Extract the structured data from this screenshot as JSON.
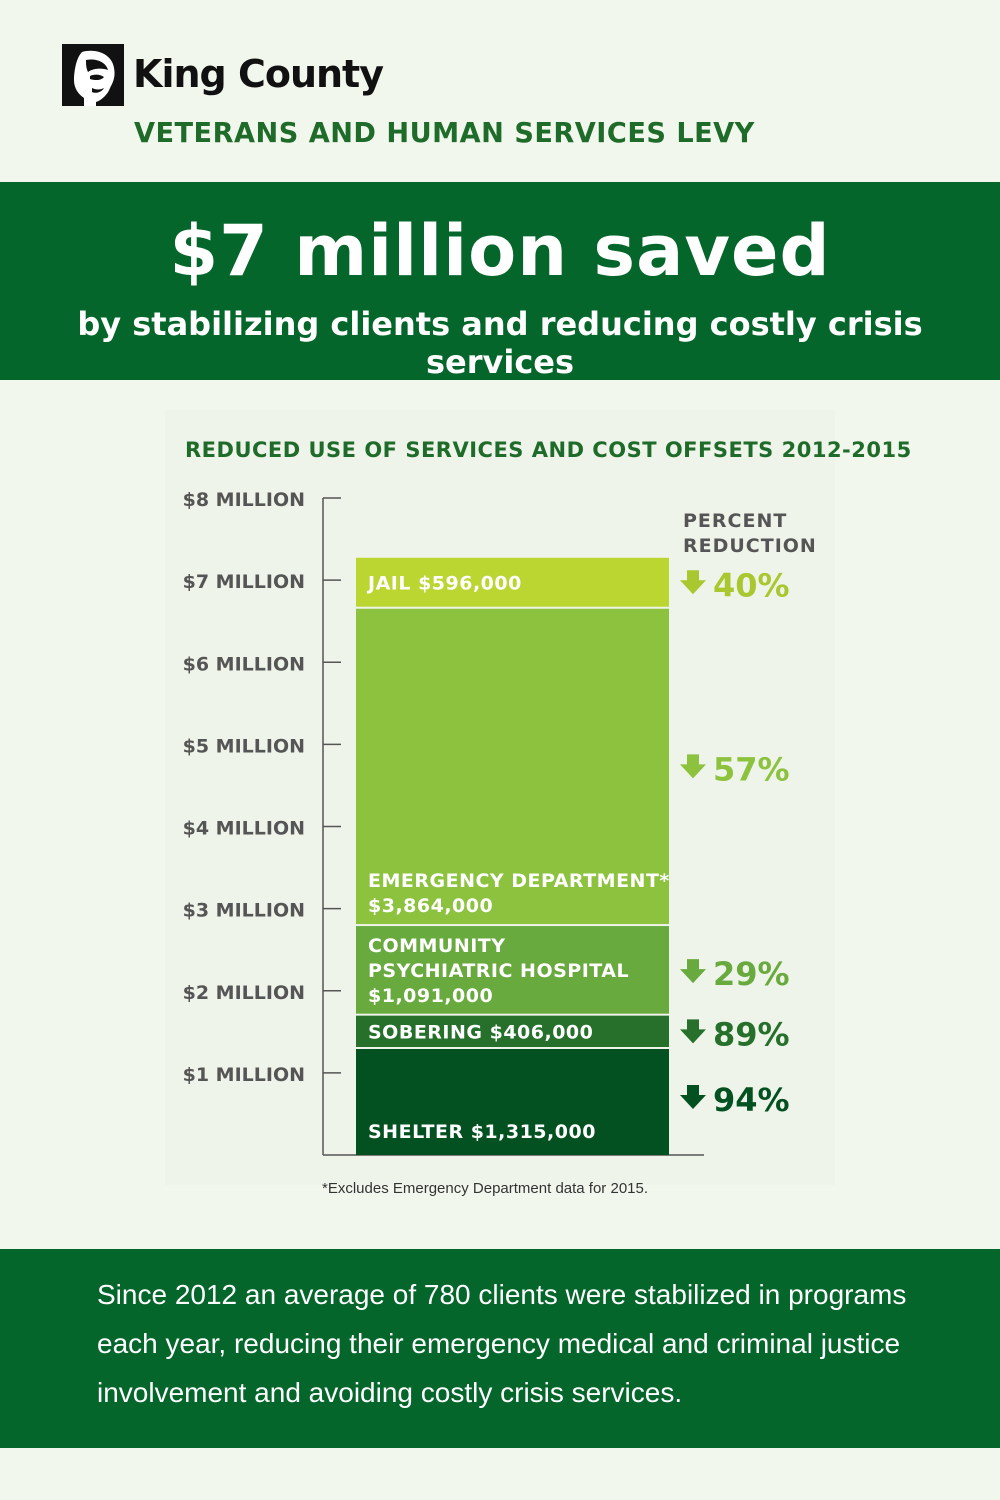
{
  "brand": {
    "name": "King County",
    "program": "VETERANS AND HUMAN SERVICES LEVY",
    "logo_icon": "king-county-logo-icon"
  },
  "banner": {
    "headline": "$7 million saved",
    "subhead": "by stabilizing clients and reducing costly crisis services"
  },
  "colors": {
    "dark_green": "#05662b",
    "title_green": "#1e6b2a",
    "jail": "#bcd631",
    "emergency": "#8dc23f",
    "psychiatric": "#69aa3e",
    "sobering": "#26702c",
    "shelter": "#035020"
  },
  "chart_data": {
    "type": "bar",
    "stacked": true,
    "title": "REDUCED USE OF SERVICES AND COST OFFSETS 2012-2015",
    "y_ticks": [
      "$1 MILLION",
      "$2 MILLION",
      "$3 MILLION",
      "$4 MILLION",
      "$5 MILLION",
      "$6 MILLION",
      "$7 MILLION",
      "$8 MILLION"
    ],
    "ylim": [
      0,
      8000000
    ],
    "reduction_header": [
      "PERCENT",
      "REDUCTION"
    ],
    "segments": [
      {
        "key": "shelter",
        "label_lines": [
          "SHELTER $1,315,000"
        ],
        "value": 1315000,
        "reduction": "94%",
        "color": "#035020",
        "arrow_color": "#035020"
      },
      {
        "key": "sobering",
        "label_lines": [
          "SOBERING $406,000"
        ],
        "value": 406000,
        "reduction": "89%",
        "color": "#26702c",
        "arrow_color": "#26702c"
      },
      {
        "key": "psychiatric",
        "label_lines": [
          "COMMUNITY",
          "PSYCHIATRIC HOSPITAL",
          "$1,091,000"
        ],
        "value": 1091000,
        "reduction": "29%",
        "color": "#69aa3e",
        "arrow_color": "#69aa3e"
      },
      {
        "key": "emergency",
        "label_lines": [
          "EMERGENCY DEPARTMENT*",
          "$3,864,000"
        ],
        "value": 3864000,
        "reduction": "57%",
        "color": "#8dc23f",
        "arrow_color": "#8dc23f"
      },
      {
        "key": "jail",
        "label_lines": [
          "JAIL $596,000"
        ],
        "value": 596000,
        "reduction": "40%",
        "color": "#bcd631",
        "arrow_color": "#a9c830"
      }
    ],
    "footnote": "*Excludes Emergency Department data for 2015."
  },
  "footer": {
    "text": "Since 2012 an average of 780 clients were stabilized in programs each year, reducing their emergency medical and criminal justice involvement and avoiding costly crisis services."
  }
}
